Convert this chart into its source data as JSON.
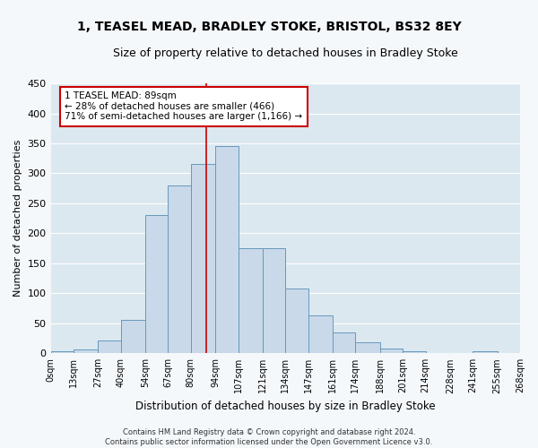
{
  "title": "1, TEASEL MEAD, BRADLEY STOKE, BRISTOL, BS32 8EY",
  "subtitle": "Size of property relative to detached houses in Bradley Stoke",
  "xlabel": "Distribution of detached houses by size in Bradley Stoke",
  "ylabel": "Number of detached properties",
  "bin_labels": [
    "0sqm",
    "13sqm",
    "27sqm",
    "40sqm",
    "54sqm",
    "67sqm",
    "80sqm",
    "94sqm",
    "107sqm",
    "121sqm",
    "134sqm",
    "147sqm",
    "161sqm",
    "174sqm",
    "188sqm",
    "201sqm",
    "214sqm",
    "228sqm",
    "241sqm",
    "255sqm",
    "268sqm"
  ],
  "bar_values": [
    3,
    7,
    22,
    55,
    230,
    280,
    315,
    345,
    175,
    175,
    108,
    63,
    35,
    18,
    8,
    3,
    0,
    0,
    3
  ],
  "bar_color": "#c9d9ea",
  "bar_edge_color": "#6699bb",
  "property_line_x": 89,
  "annotation_line1": "1 TEASEL MEAD: 89sqm",
  "annotation_line2": "← 28% of detached houses are smaller (466)",
  "annotation_line3": "71% of semi-detached houses are larger (1,166) →",
  "annotation_box_color": "#ffffff",
  "annotation_box_edge_color": "#cc0000",
  "vline_color": "#cc0000",
  "footer": "Contains HM Land Registry data © Crown copyright and database right 2024.\nContains public sector information licensed under the Open Government Licence v3.0.",
  "ylim": [
    0,
    450
  ],
  "background_color": "#dce8f0",
  "plot_bg_color": "#dce8f0",
  "fig_bg_color": "#f5f8fb",
  "grid_color": "#ffffff",
  "bin_edges": [
    0,
    13,
    27,
    40,
    54,
    67,
    80,
    94,
    107,
    121,
    134,
    147,
    161,
    174,
    188,
    201,
    214,
    228,
    241,
    255,
    268
  ],
  "yticks": [
    0,
    50,
    100,
    150,
    200,
    250,
    300,
    350,
    400,
    450
  ]
}
